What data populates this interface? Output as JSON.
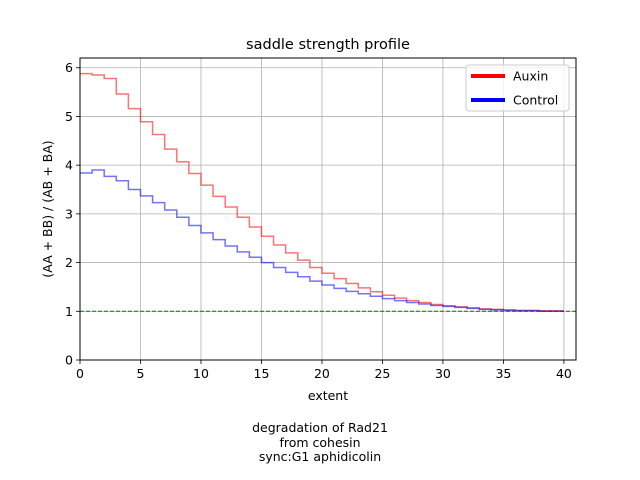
{
  "chart_data": {
    "type": "line",
    "drawstyle": "steps",
    "title": "saddle strength profile",
    "xlabel": "extent",
    "ylabel": "(AA + BB) / (AB + BA)",
    "xlim": [
      0,
      41
    ],
    "ylim": [
      0,
      6.2
    ],
    "xticks": [
      0,
      5,
      10,
      15,
      20,
      25,
      30,
      35,
      40
    ],
    "yticks": [
      0,
      1,
      2,
      3,
      4,
      5,
      6
    ],
    "grid": true,
    "legend_position": "top-right",
    "reference_line": {
      "y": 1,
      "color": "#008000",
      "style": "dashed"
    },
    "series": [
      {
        "name": "Auxin",
        "color": "#ff0000",
        "values": [
          5.88,
          5.85,
          5.78,
          5.46,
          5.16,
          4.89,
          4.63,
          4.33,
          4.07,
          3.83,
          3.59,
          3.36,
          3.14,
          2.93,
          2.73,
          2.54,
          2.36,
          2.2,
          2.05,
          1.9,
          1.78,
          1.67,
          1.57,
          1.48,
          1.4,
          1.33,
          1.27,
          1.22,
          1.18,
          1.14,
          1.11,
          1.09,
          1.07,
          1.05,
          1.04,
          1.03,
          1.02,
          1.02,
          1.01,
          1.01
        ]
      },
      {
        "name": "Control",
        "color": "#0000ff",
        "values": [
          3.84,
          3.9,
          3.77,
          3.68,
          3.5,
          3.37,
          3.23,
          3.08,
          2.93,
          2.76,
          2.61,
          2.47,
          2.34,
          2.22,
          2.11,
          2.0,
          1.9,
          1.8,
          1.71,
          1.62,
          1.54,
          1.47,
          1.41,
          1.36,
          1.31,
          1.26,
          1.22,
          1.18,
          1.15,
          1.12,
          1.1,
          1.08,
          1.06,
          1.04,
          1.03,
          1.02,
          1.01,
          1.01,
          1.0,
          1.0
        ]
      }
    ]
  },
  "caption": {
    "line1": "degradation of Rad21",
    "line2": "from cohesin",
    "line3": "sync:G1 aphidicolin"
  }
}
